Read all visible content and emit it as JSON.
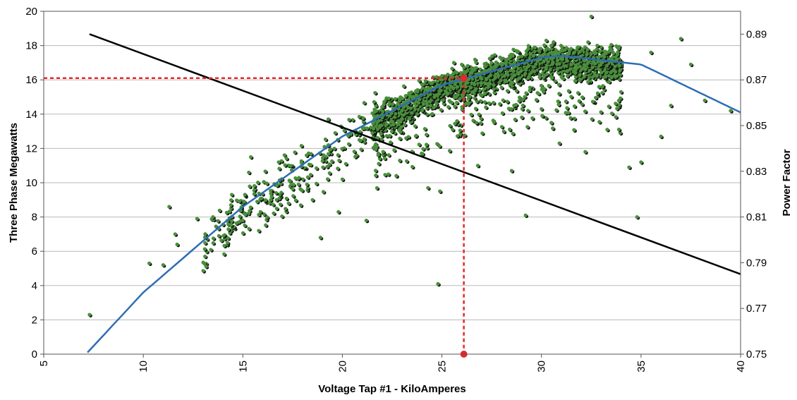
{
  "chart_data": {
    "type": "scatter",
    "title": "",
    "xlabel": "Voltage Tap #1  -  KiloAmperes",
    "ylabel": "Three Phase Megawatts",
    "y2label": "Power Factor",
    "xlim": [
      5,
      40
    ],
    "ylim": [
      0,
      20
    ],
    "y2lim": [
      0.75,
      0.9
    ],
    "x_ticks": [
      "5",
      "10",
      "15",
      "20",
      "25",
      "30",
      "35",
      "40"
    ],
    "y_ticks": [
      "0",
      "2",
      "4",
      "6",
      "8",
      "10",
      "12",
      "14",
      "16",
      "18",
      "20"
    ],
    "y2_ticks": [
      "0.75",
      "0.77",
      "0.79",
      "0.81",
      "0.83",
      "0.85",
      "0.87",
      "0.89"
    ],
    "grid": "horizontal",
    "series": [
      {
        "kind": "scatter",
        "color": "#4a8f3c",
        "sample_points": [
          [
            7.3,
            2.3
          ],
          [
            10.3,
            5.3
          ],
          [
            11.0,
            5.2
          ],
          [
            11.3,
            8.6
          ],
          [
            11.6,
            7.0
          ],
          [
            11.7,
            6.4
          ],
          [
            12.7,
            7.9
          ],
          [
            13.1,
            5.7
          ],
          [
            13.5,
            8.0
          ],
          [
            13.8,
            6.9
          ],
          [
            14.4,
            8.7
          ],
          [
            15.0,
            7.8
          ],
          [
            15.3,
            10.6
          ],
          [
            15.4,
            11.5
          ],
          [
            15.8,
            7.2
          ],
          [
            16.4,
            9.0
          ],
          [
            16.8,
            11.2
          ],
          [
            17.3,
            8.8
          ],
          [
            17.8,
            9.9
          ],
          [
            18.2,
            11.6
          ],
          [
            18.5,
            9.0
          ],
          [
            18.9,
            6.8
          ],
          [
            19.3,
            12.2
          ],
          [
            19.8,
            8.3
          ],
          [
            20.0,
            10.2
          ],
          [
            20.6,
            13.0
          ],
          [
            21.2,
            7.8
          ],
          [
            21.5,
            12.9
          ],
          [
            22.0,
            13.8
          ],
          [
            22.6,
            11.9
          ],
          [
            23.2,
            12.6
          ],
          [
            23.6,
            15.0
          ],
          [
            24.0,
            14.2
          ],
          [
            24.3,
            9.7
          ],
          [
            24.5,
            15.8
          ],
          [
            24.8,
            4.1
          ],
          [
            24.9,
            9.5
          ],
          [
            25.0,
            16.0
          ],
          [
            25.3,
            15.2
          ],
          [
            25.6,
            17.0
          ],
          [
            25.9,
            14.9
          ],
          [
            26.2,
            15.6
          ],
          [
            26.5,
            16.4
          ],
          [
            26.8,
            11.0
          ],
          [
            27.2,
            16.8
          ],
          [
            27.6,
            15.7
          ],
          [
            28.0,
            17.2
          ],
          [
            28.5,
            10.7
          ],
          [
            28.9,
            16.1
          ],
          [
            29.2,
            8.1
          ],
          [
            29.6,
            17.4
          ],
          [
            30.1,
            15.3
          ],
          [
            30.5,
            18.0
          ],
          [
            30.9,
            12.3
          ],
          [
            31.3,
            17.1
          ],
          [
            31.7,
            16.4
          ],
          [
            32.2,
            11.8
          ],
          [
            32.5,
            19.7
          ],
          [
            32.8,
            18.0
          ],
          [
            33.3,
            13.1
          ],
          [
            33.8,
            17.2
          ],
          [
            34.4,
            10.9
          ],
          [
            34.8,
            8.0
          ],
          [
            35.0,
            11.2
          ],
          [
            35.5,
            17.6
          ],
          [
            36.0,
            12.7
          ],
          [
            36.5,
            14.5
          ],
          [
            37.0,
            18.4
          ],
          [
            37.5,
            16.9
          ],
          [
            38.2,
            14.8
          ],
          [
            39.5,
            14.2
          ]
        ]
      },
      {
        "kind": "line",
        "name": "",
        "color": "#2e6db5",
        "description_points": [
          [
            7.2,
            0.1
          ],
          [
            10,
            3.6
          ],
          [
            15,
            8.6
          ],
          [
            20,
            12.7
          ],
          [
            25,
            15.7
          ],
          [
            30,
            17.3
          ],
          [
            31,
            17.4
          ],
          [
            35,
            16.9
          ],
          [
            40,
            14.1
          ]
        ]
      },
      {
        "kind": "line",
        "axis": "y2",
        "color": "#000000",
        "points": [
          [
            7.3,
            0.89
          ],
          [
            40,
            0.785
          ]
        ]
      }
    ],
    "annotations": [
      {
        "kind": "crosshair",
        "color": "#e8262a",
        "x": 26.1,
        "y": 16.1
      }
    ]
  }
}
